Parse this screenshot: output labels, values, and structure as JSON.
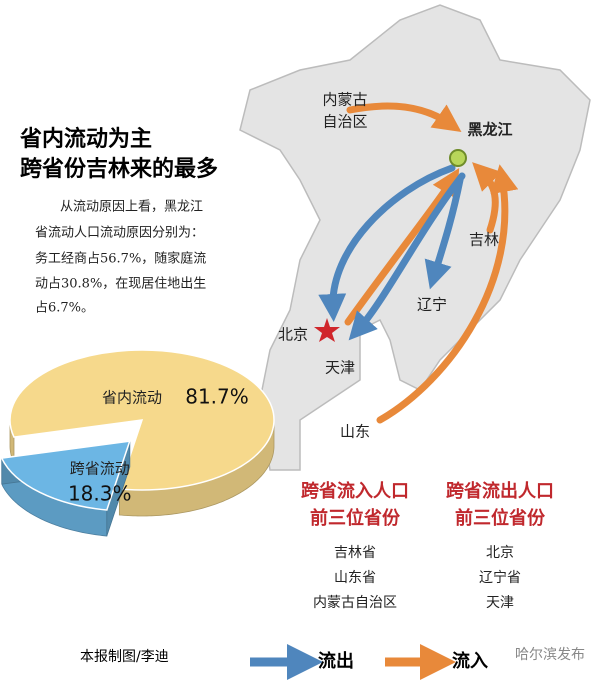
{
  "chart_data": {
    "type": "pie",
    "categories": [
      "省内流动",
      "跨省流动"
    ],
    "values": [
      81.7,
      18.3
    ],
    "value_labels": [
      "81.7%",
      "18.3%"
    ],
    "colors": [
      "#f6d98c",
      "#6cb6e4"
    ]
  },
  "headline": {
    "lines": [
      "省内流动为主",
      "跨省份吉林来的最多"
    ],
    "body": [
      "从流动原因上看，黑龙江",
      "省流动人口流动原因分别为：",
      "务工经商占56.7%，随家庭流",
      "动占30.8%，在现居住地出生",
      "占6.7%。"
    ]
  },
  "map_labels": [
    "内蒙古",
    "自治区",
    "黑龙江",
    "吉林",
    "辽宁",
    "北京",
    "天津",
    "山东"
  ],
  "inflow": {
    "title": [
      "跨省流入人口",
      "前三位省份"
    ],
    "items": [
      "吉林省",
      "山东省",
      "内蒙古自治区"
    ]
  },
  "outflow": {
    "title": [
      "跨省流出人口",
      "前三位省份"
    ],
    "items": [
      "北京",
      "辽宁省",
      "天津"
    ]
  },
  "credit": "本报制图/李迪",
  "legend": [
    "流出",
    "流入"
  ],
  "watermark": "哈尔滨发布"
}
